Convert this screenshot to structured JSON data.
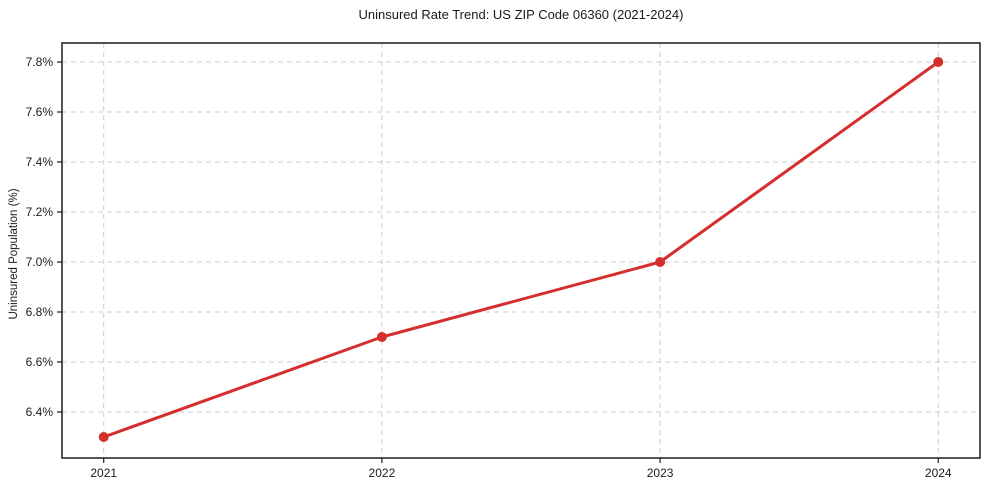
{
  "chart_data": {
    "type": "line",
    "title": "Uninsured Rate Trend: US ZIP Code 06360 (2021-2024)",
    "xlabel": "",
    "ylabel": "Uninsured Population (%)",
    "x": [
      2021,
      2022,
      2023,
      2024
    ],
    "series": [
      {
        "name": "Uninsured Population (%)",
        "values": [
          6.3,
          6.7,
          7.0,
          7.8
        ]
      }
    ],
    "x_tick_labels": [
      "2021",
      "2022",
      "2023",
      "2024"
    ],
    "y_ticks": [
      6.4,
      6.6,
      6.8,
      7.0,
      7.2,
      7.4,
      7.6,
      7.8
    ],
    "y_tick_labels": [
      "6.4%",
      "6.6%",
      "6.8%",
      "7.0%",
      "7.2%",
      "7.4%",
      "7.6%",
      "7.8%"
    ],
    "xlim": [
      2020.85,
      2024.15
    ],
    "ylim": [
      6.216,
      7.876
    ],
    "grid": true,
    "grid_style": "dashed",
    "legend_position": "none",
    "line_color": "#d62d2d",
    "marker": "circle",
    "marker_color": "#d62d2d",
    "grid_color": "#cccccc",
    "spine_color": "#1c1c1c",
    "text_color": "#1a1a1a",
    "background_color": "#ffffff"
  }
}
